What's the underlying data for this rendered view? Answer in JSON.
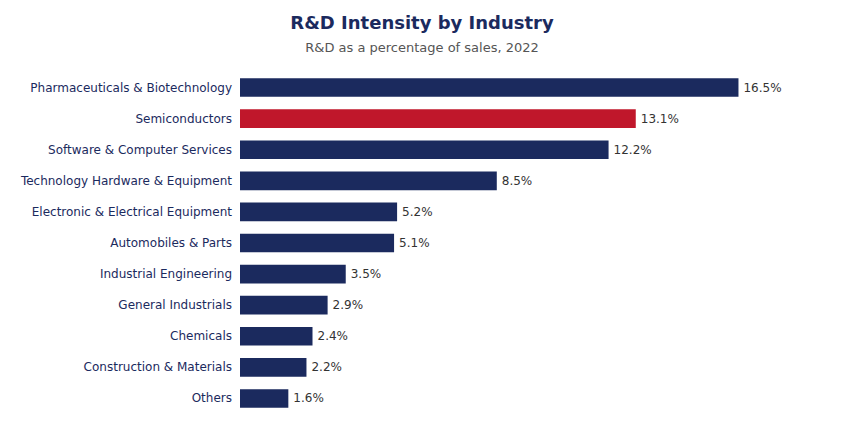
{
  "chart_data": {
    "type": "bar",
    "orientation": "horizontal",
    "title": "R&D Intensity by Industry",
    "subtitle": "R&D as a percentage of sales, 2022",
    "categories": [
      "Pharmaceuticals & Biotechnology",
      "Semiconductors",
      "Software & Computer Services",
      "Technology Hardware & Equipment",
      "Electronic & Electrical Equipment",
      "Automobiles & Parts",
      "Industrial Engineering",
      "General Industrials",
      "Chemicals",
      "Construction & Materials",
      "Others"
    ],
    "values": [
      16.5,
      13.1,
      12.2,
      8.5,
      5.2,
      5.1,
      3.5,
      2.9,
      2.4,
      2.2,
      1.6
    ],
    "value_labels": [
      "16.5%",
      "13.1%",
      "12.2%",
      "8.5%",
      "5.2%",
      "5.1%",
      "3.5%",
      "2.9%",
      "2.4%",
      "2.2%",
      "1.6%"
    ],
    "colors": [
      "#1b2a5e",
      "#c0172b",
      "#1b2a5e",
      "#1b2a5e",
      "#1b2a5e",
      "#1b2a5e",
      "#1b2a5e",
      "#1b2a5e",
      "#1b2a5e",
      "#1b2a5e",
      "#1b2a5e"
    ],
    "xlim": [
      0,
      19
    ],
    "data_labels": true,
    "tick_labels": "y",
    "grid": false
  }
}
